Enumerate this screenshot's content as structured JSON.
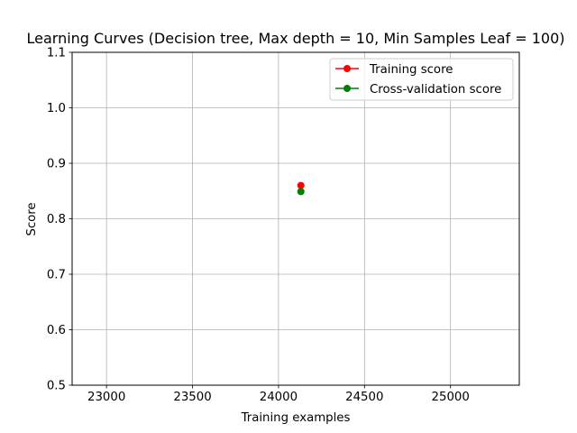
{
  "chart_data": {
    "type": "scatter",
    "title": "Learning Curves (Decision tree, Max depth = 10, Min Samples Leaf = 100)",
    "xlabel": "Training examples",
    "ylabel": "Score",
    "xlim": [
      22800,
      25400
    ],
    "ylim": [
      0.5,
      1.1
    ],
    "xticks": [
      23000,
      23500,
      24000,
      24500,
      25000
    ],
    "yticks": [
      0.5,
      0.6,
      0.7,
      0.8,
      0.9,
      1.0,
      1.1
    ],
    "xtick_labels": [
      "23000",
      "23500",
      "24000",
      "24500",
      "25000"
    ],
    "ytick_labels": [
      "0.5",
      "0.6",
      "0.7",
      "0.8",
      "0.9",
      "1.0",
      "1.1"
    ],
    "grid": true,
    "legend_position": "upper right",
    "series": [
      {
        "name": "Training score",
        "color": "#ff0000",
        "marker": "o",
        "points": [
          [
            24130,
            0.86
          ]
        ]
      },
      {
        "name": "Cross-validation score",
        "color": "#008000",
        "marker": "o",
        "points": [
          [
            24130,
            0.849
          ]
        ]
      }
    ]
  }
}
